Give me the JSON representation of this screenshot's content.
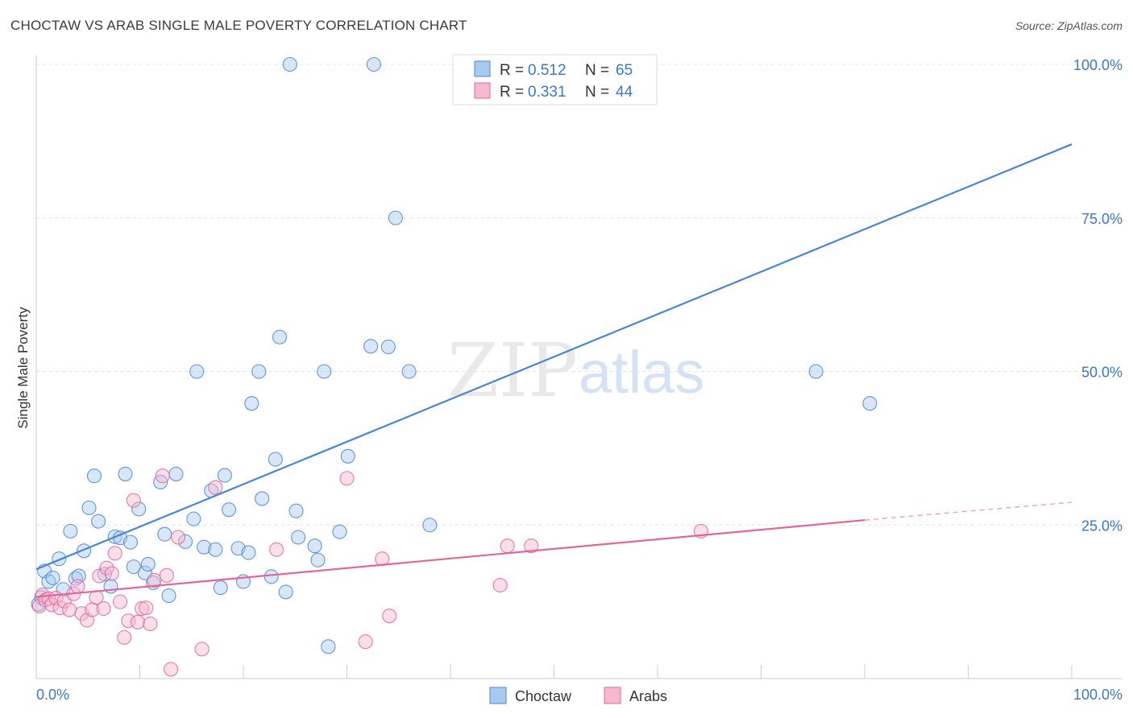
{
  "title": "CHOCTAW VS ARAB SINGLE MALE POVERTY CORRELATION CHART",
  "source": "Source: ZipAtlas.com",
  "watermark": {
    "zip": "ZIP",
    "atlas": "atlas"
  },
  "stats": [
    {
      "r_label": "R =",
      "r": "0.512",
      "n_label": "N =",
      "n": "65",
      "color": "#9ec3ee"
    },
    {
      "r_label": "R =",
      "r": "0.331",
      "n_label": "N =",
      "n": "44",
      "color": "#f6b8cc"
    }
  ],
  "chart_data": {
    "type": "scatter",
    "title": "CHOCTAW VS ARAB SINGLE MALE POVERTY CORRELATION CHART",
    "xlabel": "",
    "ylabel": "Single Male Poverty",
    "xlim": [
      0,
      100
    ],
    "ylim": [
      0,
      100
    ],
    "x_tick_labels": [
      "0.0%",
      "100.0%"
    ],
    "y_ticks": [
      25,
      50,
      75,
      100
    ],
    "y_tick_labels": [
      "25.0%",
      "50.0%",
      "75.0%",
      "100.0%"
    ],
    "legend": [
      "Choctaw",
      "Arabs"
    ],
    "series": [
      {
        "name": "Choctaw",
        "color": "#4a86d4",
        "fill": "#a9c9f0",
        "r": 0.512,
        "n": 65,
        "trend": {
          "x": [
            0,
            100
          ],
          "y": [
            17.8,
            87.0
          ]
        },
        "points": [
          [
            0.2,
            12.1
          ],
          [
            0.5,
            13.2
          ],
          [
            0.8,
            17.5
          ],
          [
            1.2,
            15.8
          ],
          [
            1.6,
            16.4
          ],
          [
            2.2,
            19.5
          ],
          [
            2.6,
            14.5
          ],
          [
            3.3,
            24.0
          ],
          [
            3.8,
            16.3
          ],
          [
            4.1,
            16.7
          ],
          [
            4.6,
            20.8
          ],
          [
            5.1,
            27.8
          ],
          [
            5.6,
            33.0
          ],
          [
            6.0,
            25.6
          ],
          [
            6.6,
            17.0
          ],
          [
            7.2,
            15.0
          ],
          [
            7.6,
            23.1
          ],
          [
            8.1,
            22.9
          ],
          [
            8.6,
            33.3
          ],
          [
            9.1,
            22.2
          ],
          [
            9.4,
            18.2
          ],
          [
            9.9,
            27.6
          ],
          [
            10.5,
            17.2
          ],
          [
            10.8,
            18.6
          ],
          [
            11.3,
            15.6
          ],
          [
            12.0,
            32.0
          ],
          [
            12.4,
            23.5
          ],
          [
            12.8,
            13.5
          ],
          [
            13.5,
            33.3
          ],
          [
            14.4,
            22.3
          ],
          [
            15.2,
            26.0
          ],
          [
            15.5,
            50.0
          ],
          [
            16.2,
            21.4
          ],
          [
            16.9,
            30.6
          ],
          [
            17.3,
            21.0
          ],
          [
            17.8,
            14.8
          ],
          [
            18.2,
            33.1
          ],
          [
            18.6,
            27.5
          ],
          [
            19.5,
            21.2
          ],
          [
            20.0,
            15.8
          ],
          [
            20.5,
            20.5
          ],
          [
            20.8,
            44.8
          ],
          [
            21.5,
            50.0
          ],
          [
            21.8,
            29.3
          ],
          [
            22.7,
            16.6
          ],
          [
            23.1,
            35.7
          ],
          [
            23.5,
            55.6
          ],
          [
            24.1,
            14.1
          ],
          [
            24.5,
            100.0
          ],
          [
            25.1,
            27.3
          ],
          [
            25.3,
            23.0
          ],
          [
            26.9,
            21.6
          ],
          [
            27.2,
            19.3
          ],
          [
            27.8,
            50.0
          ],
          [
            28.2,
            5.2
          ],
          [
            29.3,
            23.9
          ],
          [
            30.1,
            36.2
          ],
          [
            32.3,
            54.1
          ],
          [
            32.6,
            100.0
          ],
          [
            34.0,
            54.0
          ],
          [
            34.7,
            75.0
          ],
          [
            36.0,
            50.0
          ],
          [
            38.0,
            25.0
          ],
          [
            75.3,
            50.0
          ],
          [
            80.5,
            44.8
          ]
        ]
      },
      {
        "name": "Arabs",
        "color": "#e2669a",
        "fill": "#f6b8cc",
        "r": 0.331,
        "n": 44,
        "trend": {
          "x": [
            0,
            80
          ],
          "y": [
            13.3,
            25.8
          ]
        },
        "trend_dashed": {
          "x": [
            80,
            100
          ],
          "y": [
            25.8,
            28.7
          ]
        },
        "points": [
          [
            0.3,
            11.8
          ],
          [
            0.6,
            13.6
          ],
          [
            0.9,
            12.8
          ],
          [
            1.2,
            13.0
          ],
          [
            1.5,
            12.0
          ],
          [
            1.9,
            13.1
          ],
          [
            2.3,
            11.5
          ],
          [
            2.7,
            12.6
          ],
          [
            3.2,
            11.2
          ],
          [
            3.6,
            13.8
          ],
          [
            4.0,
            15.0
          ],
          [
            4.4,
            10.6
          ],
          [
            4.9,
            9.5
          ],
          [
            5.4,
            11.2
          ],
          [
            5.8,
            13.2
          ],
          [
            6.1,
            16.7
          ],
          [
            6.5,
            11.4
          ],
          [
            6.8,
            18.0
          ],
          [
            7.3,
            17.1
          ],
          [
            7.6,
            20.4
          ],
          [
            8.1,
            12.5
          ],
          [
            8.5,
            6.7
          ],
          [
            8.9,
            9.4
          ],
          [
            9.4,
            29.0
          ],
          [
            9.8,
            9.2
          ],
          [
            10.2,
            11.4
          ],
          [
            10.6,
            11.5
          ],
          [
            11.0,
            8.9
          ],
          [
            11.4,
            16.0
          ],
          [
            12.2,
            33.0
          ],
          [
            12.6,
            16.8
          ],
          [
            13.0,
            1.5
          ],
          [
            13.7,
            23.0
          ],
          [
            16.0,
            4.8
          ],
          [
            17.3,
            31.1
          ],
          [
            23.2,
            21.0
          ],
          [
            30.0,
            32.6
          ],
          [
            31.8,
            6.0
          ],
          [
            33.4,
            19.5
          ],
          [
            34.1,
            10.2
          ],
          [
            45.5,
            21.6
          ],
          [
            44.8,
            15.2
          ],
          [
            47.8,
            21.6
          ],
          [
            64.2,
            24.0
          ]
        ]
      }
    ]
  }
}
